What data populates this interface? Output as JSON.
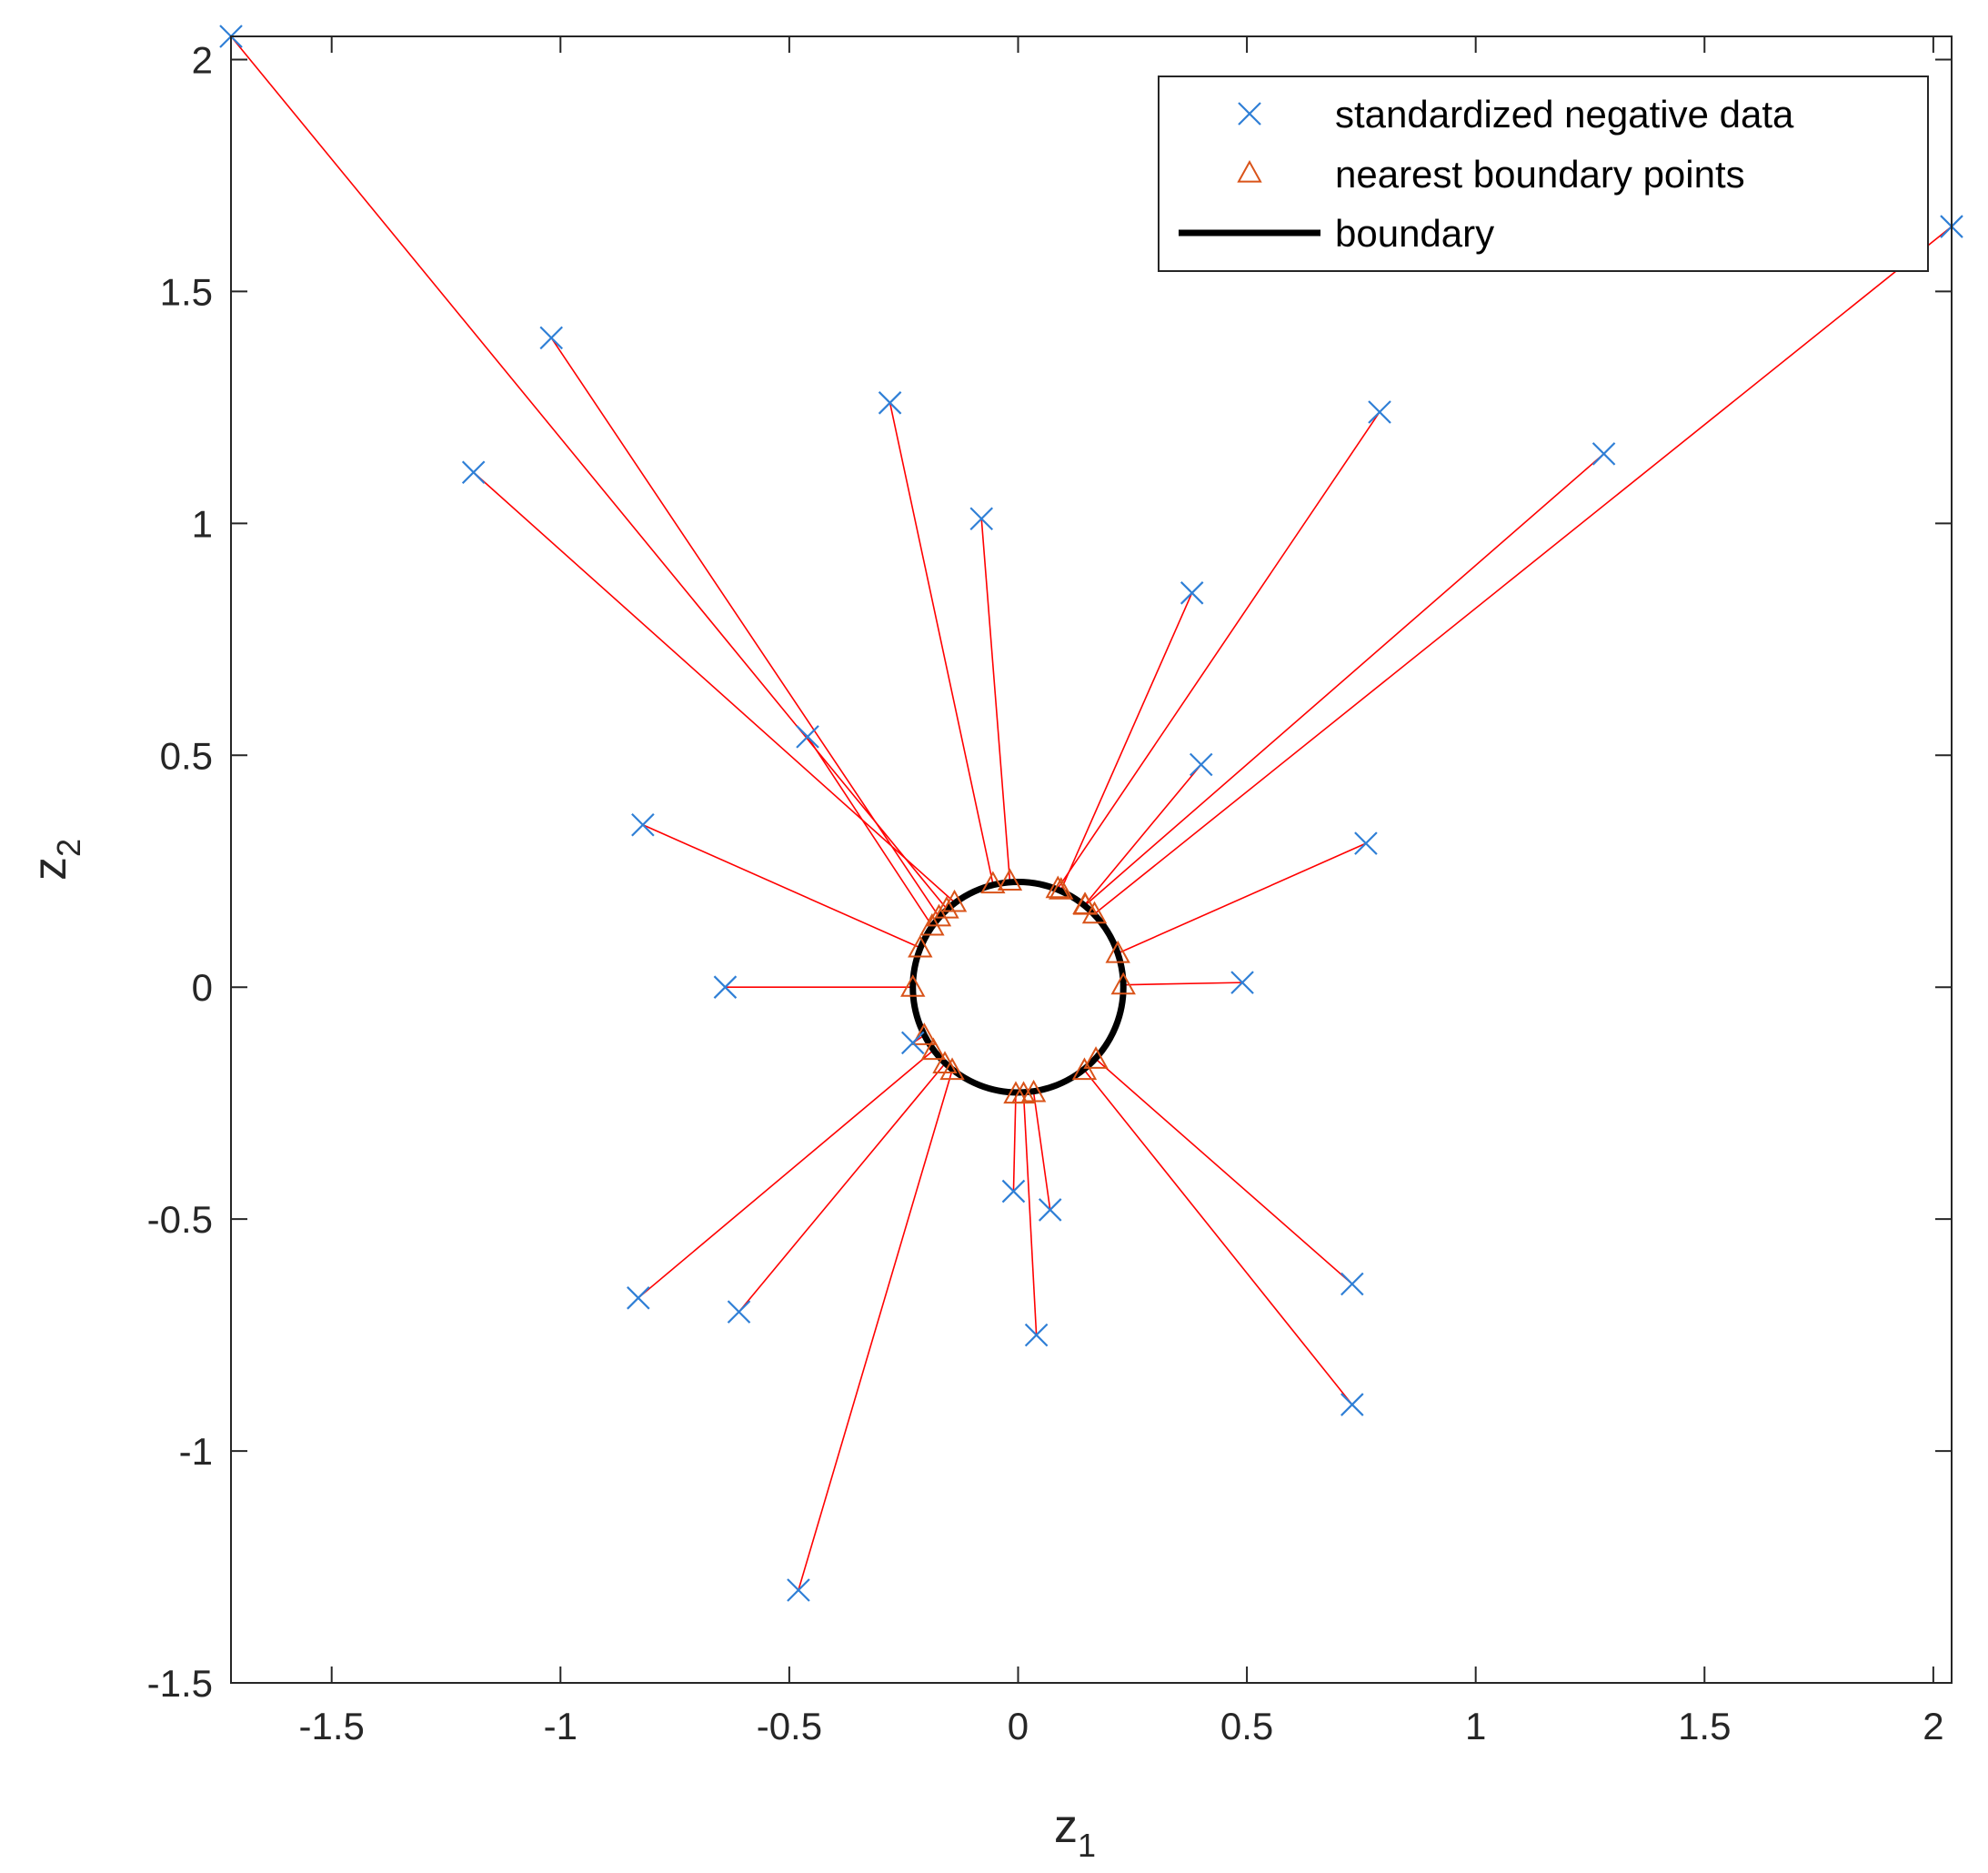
{
  "chart_data": {
    "type": "scatter",
    "xlabel_main": "z",
    "xlabel_sub": "1",
    "ylabel_main": "z",
    "ylabel_sub": "2",
    "xlim": [
      -1.72,
      2.04
    ],
    "ylim": [
      -1.5,
      2.05
    ],
    "x_ticks": [
      -1.5,
      -1,
      -0.5,
      0,
      0.5,
      1,
      1.5,
      2
    ],
    "x_tick_labels": [
      "-1.5",
      "-1",
      "-0.5",
      "0",
      "0.5",
      "1",
      "1.5",
      "2"
    ],
    "y_ticks": [
      -1.5,
      -1,
      -0.5,
      0,
      0.5,
      1,
      1.5,
      2
    ],
    "y_tick_labels": [
      "-1.5",
      "-1",
      "-0.5",
      "0",
      "0.5",
      "1",
      "1.5",
      "2"
    ],
    "grid": false,
    "legend_position": "top-right",
    "boundary": {
      "type": "circle",
      "center": [
        0.0,
        0.0
      ],
      "radius": 0.23
    },
    "series": [
      {
        "name": "standardized negative data",
        "marker": "x",
        "color": "#2f7fd6",
        "points": [
          [
            -1.72,
            2.05
          ],
          [
            -1.02,
            1.4
          ],
          [
            -1.19,
            1.11
          ],
          [
            -0.28,
            1.26
          ],
          [
            -0.08,
            1.01
          ],
          [
            -0.46,
            0.54
          ],
          [
            -0.82,
            0.35
          ],
          [
            -0.64,
            0.0
          ],
          [
            -0.23,
            -0.12
          ],
          [
            0.79,
            1.24
          ],
          [
            0.38,
            0.85
          ],
          [
            0.4,
            0.48
          ],
          [
            1.28,
            1.15
          ],
          [
            2.04,
            1.64
          ],
          [
            0.76,
            0.31
          ],
          [
            0.49,
            0.01
          ],
          [
            -0.01,
            -0.44
          ],
          [
            0.07,
            -0.48
          ],
          [
            0.04,
            -0.75
          ],
          [
            -0.83,
            -0.67
          ],
          [
            -0.61,
            -0.7
          ],
          [
            -0.48,
            -1.3
          ],
          [
            0.73,
            -0.64
          ],
          [
            0.73,
            -0.9
          ]
        ]
      },
      {
        "name": "nearest boundary points",
        "marker": "triangle",
        "color": "#d95319",
        "points": [
          [
            -0.156,
            0.169
          ],
          [
            -0.173,
            0.152
          ],
          [
            -0.139,
            0.183
          ],
          [
            -0.055,
            0.223
          ],
          [
            -0.018,
            0.229
          ],
          [
            -0.188,
            0.132
          ],
          [
            -0.214,
            0.085
          ],
          [
            -0.23,
            0.0
          ],
          [
            -0.205,
            -0.104
          ],
          [
            0.087,
            0.213
          ],
          [
            0.094,
            0.21
          ],
          [
            0.146,
            0.178
          ],
          [
            0.147,
            0.177
          ],
          [
            0.167,
            0.158
          ],
          [
            0.218,
            0.073
          ],
          [
            0.23,
            0.005
          ],
          [
            -0.005,
            -0.23
          ],
          [
            0.034,
            -0.227
          ],
          [
            0.012,
            -0.23
          ],
          [
            -0.185,
            -0.136
          ],
          [
            -0.16,
            -0.165
          ],
          [
            -0.144,
            -0.179
          ],
          [
            0.17,
            -0.155
          ],
          [
            0.145,
            -0.179
          ]
        ]
      },
      {
        "name": "boundary",
        "marker": "line",
        "color": "#000000"
      }
    ],
    "connector_color": "#ff0000"
  }
}
